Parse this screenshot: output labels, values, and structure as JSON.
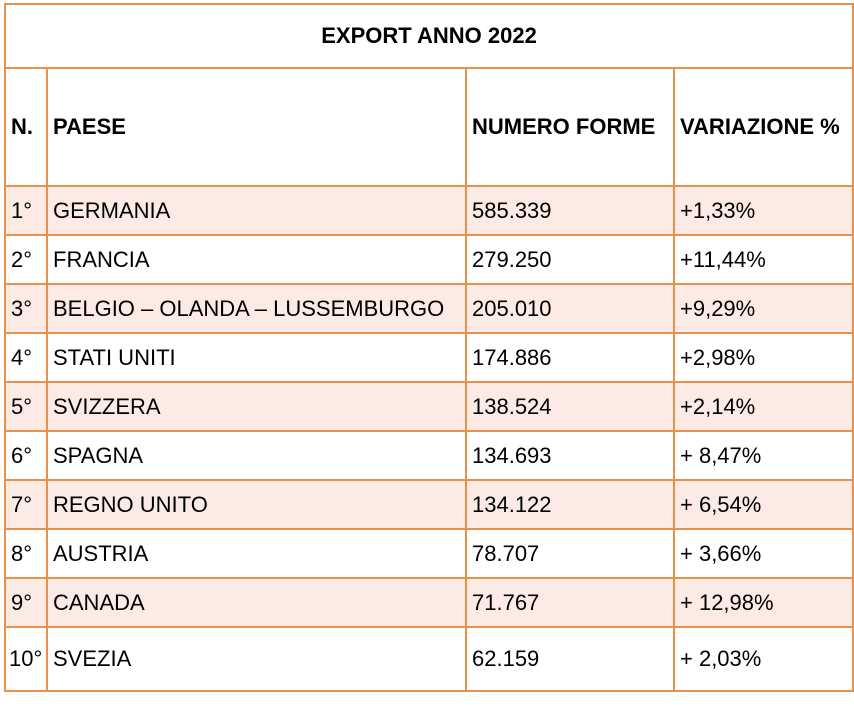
{
  "title": "EXPORT ANNO 2022",
  "headers": {
    "rank": "N.",
    "country": "PAESE",
    "quantity": "NUMERO FORME",
    "change": "VARIAZIONE %"
  },
  "rows": [
    {
      "rank": "1°",
      "country": "GERMANIA",
      "quantity": "585.339",
      "change": "+1,33%"
    },
    {
      "rank": "2°",
      "country": "FRANCIA",
      "quantity": "279.250",
      "change": "+11,44%"
    },
    {
      "rank": "3°",
      "country": "BELGIO – OLANDA – LUSSEMBURGO",
      "quantity": "205.010",
      "change": "+9,29%"
    },
    {
      "rank": "4°",
      "country": "STATI UNITI",
      "quantity": "174.886",
      "change": "+2,98%"
    },
    {
      "rank": "5°",
      "country": "SVIZZERA",
      "quantity": "138.524",
      "change": "+2,14%"
    },
    {
      "rank": "6°",
      "country": "SPAGNA",
      "quantity": "134.693",
      "change": "+ 8,47%"
    },
    {
      "rank": "7°",
      "country": "REGNO UNITO",
      "quantity": "134.122",
      "change": "+ 6,54%"
    },
    {
      "rank": "8°",
      "country": "AUSTRIA",
      "quantity": "78.707",
      "change": "+ 3,66%"
    },
    {
      "rank": "9°",
      "country": "CANADA",
      "quantity": "71.767",
      "change": "+ 12,98%"
    },
    {
      "rank": "10°",
      "country": "SVEZIA",
      "quantity": "62.159",
      "change": "+ 2,03%"
    }
  ]
}
